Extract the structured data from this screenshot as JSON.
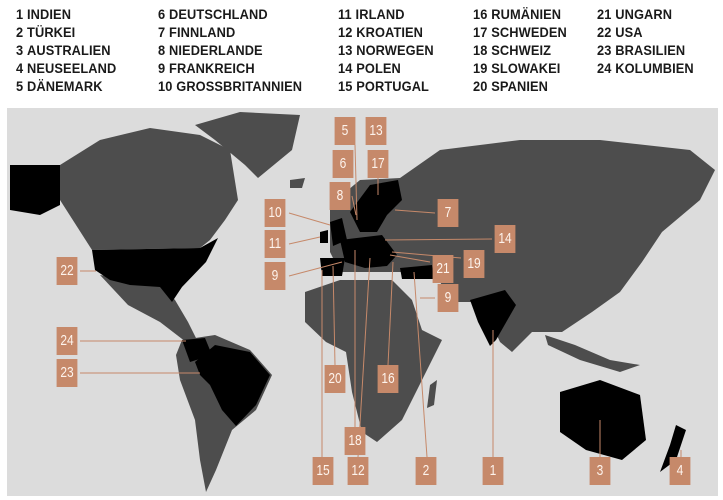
{
  "legend": [
    {
      "num": "1",
      "name": "INDIEN"
    },
    {
      "num": "2",
      "name": "TÜRKEI"
    },
    {
      "num": "3",
      "name": "AUSTRALIEN"
    },
    {
      "num": "4",
      "name": "NEUSEELAND"
    },
    {
      "num": "5",
      "name": "DÄNEMARK"
    },
    {
      "num": "6",
      "name": "DEUTSCHLAND"
    },
    {
      "num": "7",
      "name": "FINNLAND"
    },
    {
      "num": "8",
      "name": "NIEDERLANDE"
    },
    {
      "num": "9",
      "name": "FRANKREICH"
    },
    {
      "num": "10",
      "name": "GROSSBRITANNIEN"
    },
    {
      "num": "11",
      "name": "IRLAND"
    },
    {
      "num": "12",
      "name": "KROATIEN"
    },
    {
      "num": "13",
      "name": "NORWEGEN"
    },
    {
      "num": "14",
      "name": "POLEN"
    },
    {
      "num": "15",
      "name": "PORTUGAL"
    },
    {
      "num": "16",
      "name": "RUMÄNIEN"
    },
    {
      "num": "17",
      "name": "SCHWEDEN"
    },
    {
      "num": "18",
      "name": "SCHWEIZ"
    },
    {
      "num": "19",
      "name": "SLOWAKEI"
    },
    {
      "num": "20",
      "name": "SPANIEN"
    },
    {
      "num": "21",
      "name": "UNGARN"
    },
    {
      "num": "22",
      "name": "USA"
    },
    {
      "num": "23",
      "name": "BRASILIEN"
    },
    {
      "num": "24",
      "name": "KOLUMBIEN"
    }
  ],
  "map_labels": [
    "5",
    "13",
    "6",
    "17",
    "8",
    "10",
    "7",
    "11",
    "14",
    "22",
    "9",
    "21",
    "19",
    "9",
    "24",
    "23",
    "20",
    "16",
    "18",
    "15",
    "12",
    "2",
    "1",
    "3",
    "4"
  ],
  "colors": {
    "ocean": "#dcdcdc",
    "land": "#4d4d4d",
    "highlighted": "#000000",
    "label_box": "#c6896a"
  }
}
